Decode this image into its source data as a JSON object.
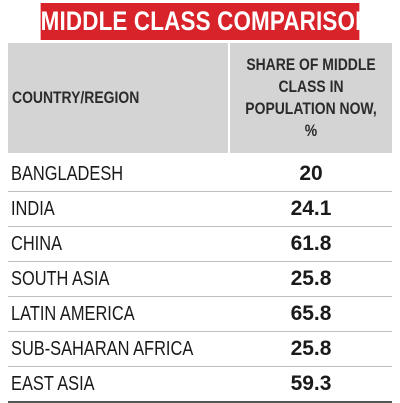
{
  "title": "MIDDLE CLASS COMPARISONS",
  "chart_data": {
    "type": "table",
    "title": "MIDDLE CLASS COMPARISONS",
    "columns": [
      "COUNTRY/REGION",
      "SHARE OF MIDDLE CLASS IN POPULATION NOW, %"
    ],
    "column_lines": [
      "SHARE OF MIDDLE",
      "CLASS IN",
      "POPULATION NOW, %"
    ],
    "categories": [
      "BANGLADESH",
      "INDIA",
      "CHINA",
      "SOUTH ASIA",
      "LATIN AMERICA",
      "SUB-SAHARAN AFRICA",
      "EAST ASIA"
    ],
    "values": [
      "20",
      "24.1",
      "61.8",
      "25.8",
      "65.8",
      "25.8",
      "59.3"
    ]
  },
  "colors": {
    "title_background": "#d8232a",
    "header_background": "#d4d4d4",
    "text": "#1a1a1a"
  }
}
